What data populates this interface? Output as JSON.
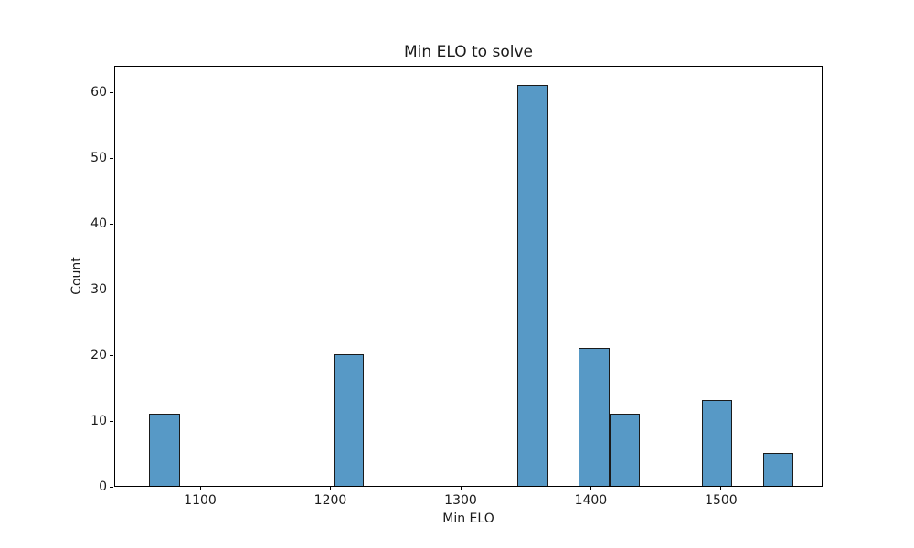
{
  "chart_data": {
    "type": "bar",
    "subtype": "histogram",
    "title": "Min ELO to solve",
    "xlabel": "Min ELO",
    "ylabel": "Count",
    "bin_edges": [
      1060,
      1083.57,
      1107.14,
      1130.71,
      1154.29,
      1177.86,
      1201.43,
      1225.0,
      1248.57,
      1272.14,
      1295.71,
      1319.29,
      1342.86,
      1366.43,
      1390.0,
      1413.57,
      1437.14,
      1460.71,
      1484.29,
      1507.86,
      1531.43,
      1555.0
    ],
    "counts": [
      11,
      0,
      0,
      0,
      0,
      0,
      20,
      0,
      0,
      0,
      0,
      0,
      61,
      0,
      21,
      11,
      0,
      0,
      13,
      0,
      5
    ],
    "nonzero_bars": [
      {
        "x_range": "1060-1084",
        "count": 11
      },
      {
        "x_range": "1201-1225",
        "count": 20
      },
      {
        "x_range": "1343-1366",
        "count": 61
      },
      {
        "x_range": "1390-1414",
        "count": 21
      },
      {
        "x_range": "1414-1437",
        "count": 11
      },
      {
        "x_range": "1484-1508",
        "count": 13
      },
      {
        "x_range": "1531-1555",
        "count": 5
      }
    ],
    "xlim": [
      1034,
      1578
    ],
    "ylim": [
      0,
      64.05
    ],
    "xticks": [
      1100,
      1200,
      1300,
      1400,
      1500
    ],
    "yticks": [
      0,
      10,
      20,
      30,
      40,
      50,
      60
    ],
    "bar_color": "#5799c6",
    "bar_edge_color": "#1a1a1a",
    "grid": false,
    "legend": null,
    "background_color": "#ffffff"
  }
}
